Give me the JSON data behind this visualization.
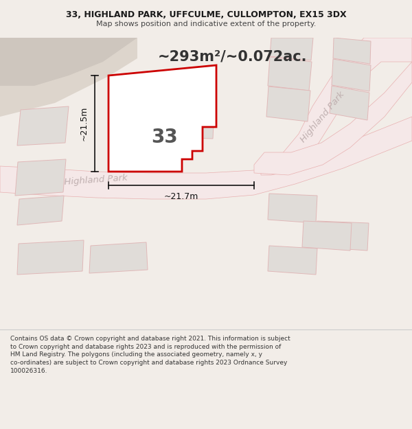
{
  "title_line1": "33, HIGHLAND PARK, UFFCULME, CULLOMPTON, EX15 3DX",
  "title_line2": "Map shows position and indicative extent of the property.",
  "area_text": "~293m²/~0.072ac.",
  "label_33": "33",
  "label_width": "~21.7m",
  "label_height": "~21.5m",
  "road_label_lower": "Highland Park",
  "road_label_right": "Highland Park",
  "footer_text": "Contains OS data © Crown copyright and database right 2021. This information is subject\nto Crown copyright and database rights 2023 and is reproduced with the permission of\nHM Land Registry. The polygons (including the associated geometry, namely x, y\nco-ordinates) are subject to Crown copyright and database rights 2023 Ordnance Survey\n100026316.",
  "map_bg": "#f2ede8",
  "top_strip_color": "#e0d8d0",
  "plot_fill": "#ffffff",
  "plot_outline": "#cc0000",
  "plot_lw": 2.0,
  "road_fill": "#f5e8e8",
  "road_edge": "#e8b0b0",
  "bld_fill": "#e0dcd8",
  "bld_edge": "#e0b8b8",
  "dim_color": "#111111",
  "road_text_color": "#c0b0b0",
  "footer_bg": "#ffffff",
  "title_bg": "#f2ede8",
  "figsize": [
    6.0,
    6.25
  ],
  "dpi": 100
}
